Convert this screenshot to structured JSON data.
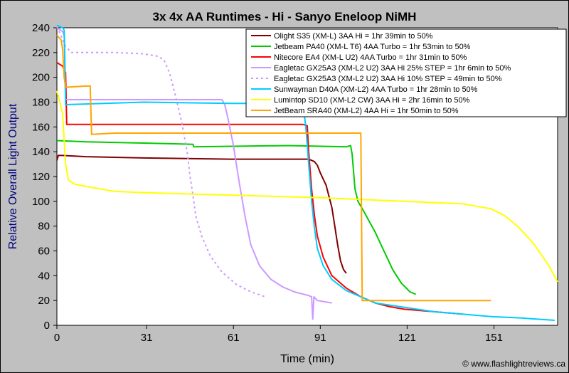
{
  "chart_data": {
    "type": "line",
    "title": "3x 4x AA Runtimes - Hi - Sanyo Eneloop NiMH",
    "xlabel": "Time (min)",
    "ylabel": "Relative Overall Light Output",
    "xlim": [
      0,
      173
    ],
    "ylim": [
      0,
      240
    ],
    "xticks": [
      0,
      31,
      61,
      91,
      121,
      151
    ],
    "yticks": [
      0,
      20,
      40,
      60,
      80,
      100,
      120,
      140,
      160,
      180,
      200,
      220,
      240
    ],
    "grid": false,
    "legend_position": "top-right",
    "credit": "© www.flashlightreviews.ca",
    "series": [
      {
        "name": "Olight S35 (XM-L) 3AA Hi = 1hr 39min to 50%",
        "color": "#800000",
        "dash": false,
        "points": [
          [
            0,
            133
          ],
          [
            0.5,
            137
          ],
          [
            2,
            137
          ],
          [
            10,
            136
          ],
          [
            30,
            135
          ],
          [
            60,
            134
          ],
          [
            80,
            134
          ],
          [
            87,
            134
          ],
          [
            89,
            132
          ],
          [
            90,
            129
          ],
          [
            91,
            123
          ],
          [
            93,
            113
          ],
          [
            95,
            95
          ],
          [
            96,
            80
          ],
          [
            97,
            65
          ],
          [
            98,
            52
          ],
          [
            99,
            45
          ],
          [
            100,
            42
          ]
        ]
      },
      {
        "name": "Jetbeam PA40 (XM-L T6) 4AA Turbo = 1hr 53min to 50%",
        "color": "#00cc00",
        "dash": false,
        "points": [
          [
            0,
            149
          ],
          [
            10,
            148
          ],
          [
            30,
            147
          ],
          [
            47,
            146
          ],
          [
            47.3,
            144
          ],
          [
            80,
            145
          ],
          [
            100,
            144
          ],
          [
            101.5,
            145
          ],
          [
            102,
            138
          ],
          [
            103,
            110
          ],
          [
            104,
            100
          ],
          [
            106,
            92
          ],
          [
            110,
            75
          ],
          [
            113,
            60
          ],
          [
            116,
            45
          ],
          [
            119,
            34
          ],
          [
            122,
            27
          ],
          [
            124,
            25
          ]
        ]
      },
      {
        "name": "Nitecore EA4 (XM-L U2) 4AA Turbo = 1hr 31min to 50%",
        "color": "#ff0000",
        "dash": false,
        "points": [
          [
            0,
            212
          ],
          [
            2,
            209
          ],
          [
            3,
            204
          ],
          [
            3.4,
            162
          ],
          [
            30,
            162
          ],
          [
            60,
            162
          ],
          [
            85,
            162
          ],
          [
            86.5,
            161
          ],
          [
            87,
            140
          ],
          [
            88,
            110
          ],
          [
            89,
            88
          ],
          [
            90,
            72
          ],
          [
            92,
            55
          ],
          [
            95,
            40
          ],
          [
            100,
            30
          ],
          [
            105,
            23
          ],
          [
            110,
            18
          ],
          [
            115,
            15
          ],
          [
            120,
            13
          ],
          [
            130,
            11
          ],
          [
            140,
            9
          ]
        ]
      },
      {
        "name": "Eagletac GX25A3 (XM-L2 U2) 3AA Hi 25% STEP = 1hr 6min to 50%",
        "color": "#cc99ff",
        "dash": false,
        "points": [
          [
            0,
            240
          ],
          [
            2,
            237
          ],
          [
            2.6,
            233
          ],
          [
            3,
            182
          ],
          [
            30,
            182
          ],
          [
            55,
            182
          ],
          [
            57,
            182
          ],
          [
            58,
            178
          ],
          [
            59,
            168
          ],
          [
            61,
            145
          ],
          [
            63,
            115
          ],
          [
            65,
            88
          ],
          [
            67,
            65
          ],
          [
            70,
            48
          ],
          [
            74,
            37
          ],
          [
            78,
            31
          ],
          [
            82,
            27
          ],
          [
            87,
            24
          ],
          [
            88,
            23
          ],
          [
            88.4,
            5
          ],
          [
            88.8,
            23
          ],
          [
            90,
            20
          ],
          [
            95,
            18
          ]
        ]
      },
      {
        "name": "Eagletac GX25A3 (XM-L2 U2) 3AA Hi 10% STEP = 49min to 50%",
        "color": "#cc99ff",
        "dash": true,
        "points": [
          [
            0,
            241
          ],
          [
            3,
            225
          ],
          [
            5,
            220
          ],
          [
            20,
            220
          ],
          [
            30,
            219
          ],
          [
            35,
            217
          ],
          [
            37,
            214
          ],
          [
            39,
            203
          ],
          [
            41,
            185
          ],
          [
            43,
            165
          ],
          [
            45,
            140
          ],
          [
            46,
            120
          ],
          [
            47,
            105
          ],
          [
            48,
            88
          ],
          [
            50,
            72
          ],
          [
            53,
            56
          ],
          [
            57,
            43
          ],
          [
            62,
            33
          ],
          [
            67,
            27
          ],
          [
            72,
            23
          ]
        ]
      },
      {
        "name": "Sunwayman D40A (XM-L2) 4AA Turbo = 1hr 28min to 50%",
        "color": "#00ccff",
        "dash": false,
        "points": [
          [
            0,
            242
          ],
          [
            2,
            240
          ],
          [
            2.5,
            238
          ],
          [
            3,
            178
          ],
          [
            30,
            180
          ],
          [
            60,
            179
          ],
          [
            83,
            179
          ],
          [
            85,
            178
          ],
          [
            86,
            160
          ],
          [
            87,
            130
          ],
          [
            88,
            100
          ],
          [
            89,
            78
          ],
          [
            90,
            62
          ],
          [
            92,
            48
          ],
          [
            95,
            37
          ],
          [
            100,
            28
          ],
          [
            110,
            18
          ],
          [
            130,
            11
          ],
          [
            150,
            7
          ],
          [
            160,
            6
          ],
          [
            172,
            4
          ]
        ]
      },
      {
        "name": "Lumintop SD10 (XM-L2 CW) 3AA Hi = 2hr 16min to 50%",
        "color": "#ffff00",
        "dash": false,
        "points": [
          [
            0,
            189
          ],
          [
            1,
            180
          ],
          [
            2,
            170
          ],
          [
            3,
            130
          ],
          [
            4,
            117
          ],
          [
            6,
            114
          ],
          [
            10,
            112
          ],
          [
            20,
            108
          ],
          [
            30,
            107
          ],
          [
            60,
            105
          ],
          [
            90,
            103
          ],
          [
            120,
            100
          ],
          [
            140,
            98
          ],
          [
            150,
            94
          ],
          [
            155,
            88
          ],
          [
            160,
            78
          ],
          [
            165,
            65
          ],
          [
            170,
            48
          ],
          [
            173,
            35
          ]
        ]
      },
      {
        "name": "JetBeam SRA40 (XM-L2) 4AA Hi = 1hr 50min to 50%",
        "color": "#ffa500",
        "dash": false,
        "points": [
          [
            0,
            234
          ],
          [
            1.5,
            230
          ],
          [
            2,
            222
          ],
          [
            2.5,
            200
          ],
          [
            3,
            192
          ],
          [
            10,
            193
          ],
          [
            11.5,
            193
          ],
          [
            12,
            154
          ],
          [
            20,
            155
          ],
          [
            50,
            155
          ],
          [
            80,
            155
          ],
          [
            100,
            155
          ],
          [
            105,
            155
          ],
          [
            105.5,
            20
          ],
          [
            115,
            20
          ],
          [
            150,
            20
          ]
        ]
      }
    ]
  }
}
